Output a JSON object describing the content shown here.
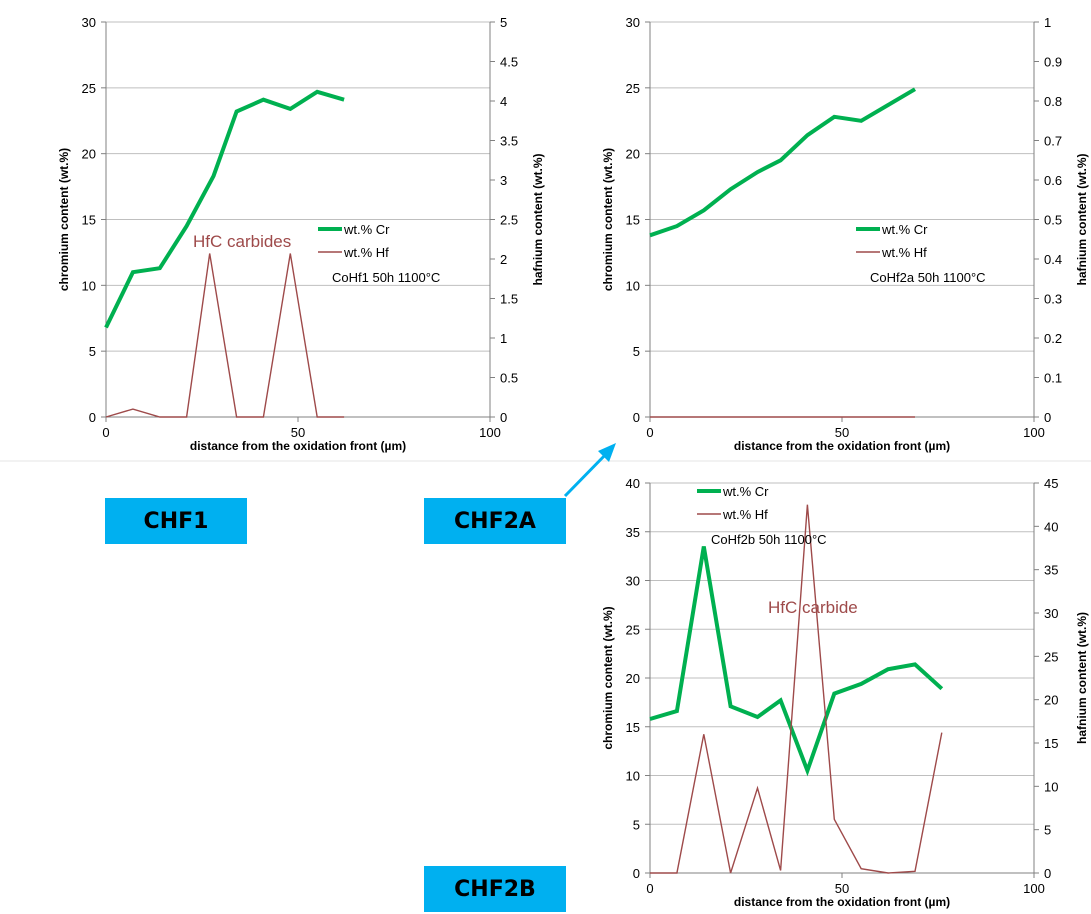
{
  "labels": {
    "chf1": "CHF1",
    "chf2a": "CHF2A",
    "chf2b": "CHF2B"
  },
  "colors": {
    "cr": "#00b050",
    "hf": "#9e4a4a",
    "grid": "#bfbfbf",
    "axis": "#808080",
    "arrow": "#00b0f0",
    "box": "#00b0f0"
  },
  "chart_data": [
    {
      "id": "chf1",
      "type": "line",
      "xlabel": "distance from the oxidation front (µm)",
      "ylabel": "chromium content (wt.%)",
      "y2label": "hafnium content (wt.%)",
      "xlim": [
        0,
        100
      ],
      "x_ticks": [
        "0",
        "50",
        "100"
      ],
      "ylim": [
        0,
        30
      ],
      "y_ticks": [
        "0",
        "5",
        "10",
        "15",
        "20",
        "25",
        "30"
      ],
      "y2lim": [
        0,
        5
      ],
      "y2_ticks": [
        "0",
        "0.5",
        "1",
        "1.5",
        "2",
        "2.5",
        "3",
        "3.5",
        "4",
        "4.5",
        "5"
      ],
      "grid": true,
      "legend": {
        "cr": "wt.% Cr",
        "hf": "wt.% Hf",
        "note": "CoHf1 50h 1100°C"
      },
      "annotation": "HfC carbides",
      "series": [
        {
          "name": "wt.% Cr",
          "axis": "left",
          "x": [
            0,
            7,
            14,
            21,
            28,
            34,
            41,
            48,
            55,
            62
          ],
          "values": [
            6.8,
            11.0,
            11.3,
            14.5,
            18.3,
            23.2,
            24.1,
            23.4,
            24.7,
            24.1
          ]
        },
        {
          "name": "wt.% Hf",
          "axis": "right",
          "x": [
            0,
            7,
            14,
            21,
            27,
            34,
            41,
            48,
            55,
            62
          ],
          "values": [
            0,
            0.1,
            0,
            0,
            2.07,
            0,
            0,
            2.07,
            0,
            0
          ]
        }
      ]
    },
    {
      "id": "chf2a",
      "type": "line",
      "xlabel": "distance from the oxidation front (µm)",
      "ylabel": "chromium content (wt.%)",
      "y2label": "hafnium content (wt.%)",
      "xlim": [
        0,
        100
      ],
      "x_ticks": [
        "0",
        "50",
        "100"
      ],
      "ylim": [
        0,
        30
      ],
      "y_ticks": [
        "0",
        "5",
        "10",
        "15",
        "20",
        "25",
        "30"
      ],
      "y2lim": [
        0,
        1
      ],
      "y2_ticks": [
        "0",
        "0.1",
        "0.2",
        "0.3",
        "0.4",
        "0.5",
        "0.6",
        "0.7",
        "0.8",
        "0.9",
        "1"
      ],
      "grid": true,
      "legend": {
        "cr": "wt.% Cr",
        "hf": "wt.% Hf",
        "note": "CoHf2a 50h 1100°C"
      },
      "series": [
        {
          "name": "wt.% Cr",
          "axis": "left",
          "x": [
            0,
            7,
            14,
            21,
            28,
            34,
            41,
            48,
            55,
            62,
            69
          ],
          "values": [
            13.8,
            14.5,
            15.7,
            17.3,
            18.6,
            19.5,
            21.4,
            22.8,
            22.5,
            23.7,
            24.9
          ]
        },
        {
          "name": "wt.% Hf",
          "axis": "right",
          "x": [
            0,
            7,
            14,
            21,
            28,
            34,
            41,
            48,
            55,
            62,
            69
          ],
          "values": [
            0,
            0,
            0,
            0,
            0,
            0,
            0,
            0,
            0,
            0,
            0
          ]
        }
      ]
    },
    {
      "id": "chf2b",
      "type": "line",
      "xlabel": "distance from the oxidation front (µm)",
      "ylabel": "chromium content (wt.%)",
      "y2label": "hafnium content (wt.%)",
      "xlim": [
        0,
        100
      ],
      "x_ticks": [
        "0",
        "50",
        "100"
      ],
      "ylim": [
        0,
        40
      ],
      "y_ticks": [
        "0",
        "5",
        "10",
        "15",
        "20",
        "25",
        "30",
        "35",
        "40"
      ],
      "y2lim": [
        0,
        45
      ],
      "y2_ticks": [
        "0",
        "5",
        "10",
        "15",
        "20",
        "25",
        "30",
        "35",
        "40",
        "45"
      ],
      "grid": true,
      "legend": {
        "cr": "wt.% Cr",
        "hf": "wt.% Hf",
        "note": "CoHf2b 50h 1100°C"
      },
      "annotation": "HfC carbide",
      "series": [
        {
          "name": "wt.% Cr",
          "axis": "left",
          "x": [
            0,
            7,
            14,
            21,
            28,
            34,
            41,
            48,
            55,
            62,
            69,
            76
          ],
          "values": [
            15.8,
            16.6,
            33.5,
            17.1,
            16.0,
            17.7,
            10.5,
            18.4,
            19.4,
            20.9,
            21.4,
            18.9
          ]
        },
        {
          "name": "wt.% Hf",
          "axis": "right",
          "x": [
            0,
            7,
            14,
            21,
            28,
            34,
            41,
            48,
            55,
            62,
            69,
            76
          ],
          "values": [
            0,
            0,
            16.0,
            0,
            9.8,
            0.3,
            42.5,
            6.2,
            0.5,
            0,
            0.2,
            16.2
          ]
        }
      ]
    }
  ]
}
